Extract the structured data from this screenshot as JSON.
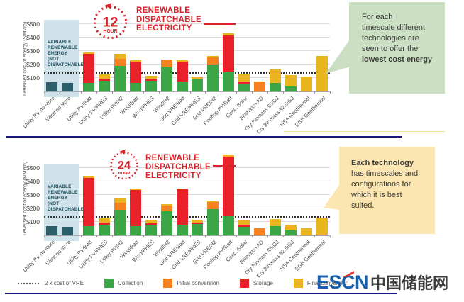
{
  "colors": {
    "vre_bar": "#2b5d6b",
    "collection": "#3aa648",
    "initial_conversion": "#f58220",
    "storage": "#e8212a",
    "final_conversion": "#e9b420",
    "panel_bg": "#cfe1e9",
    "panel_text": "#1d4f5f",
    "accent_red": "#d8232a",
    "navy_line": "#18187e",
    "pale_yellow_line": "#f3dc9b",
    "green_box_bg": "#cbdfc2",
    "yellow_box_bg": "#fbe6b2",
    "logo_blue": "#1961ad",
    "logo_red": "#e23b2e"
  },
  "chart_data": [
    {
      "type": "bar",
      "stacked": true,
      "badge": {
        "number": "12",
        "unit": "HOUR"
      },
      "title": "RENEWABLE DISPATCHABLE ELECTRICITY",
      "title_lines": [
        "RENEWABLE",
        "DISPATCHABLE",
        "ELECTRICITY"
      ],
      "ylabel": "Levelised cost of energy ($/MWh)",
      "ylim": [
        0,
        550
      ],
      "grid": true,
      "y_tick_labels": [
        "$100",
        "$200",
        "$300",
        "$400",
        "$500"
      ],
      "vre_panel_label_lines": [
        "VARIABLE",
        "RENEWABLE",
        "ENERGY (NOT",
        "DISPATCHABLE)"
      ],
      "reference_line": {
        "label": "2 x cost of VRE",
        "value": 130
      },
      "categories": [
        "Utility PV no store",
        "Wind no store",
        "Utility PV/Batt",
        "Utility PV/PHES",
        "Utility PV/H2",
        "Wind/Batt",
        "Wind/PHES",
        "Wind/H2",
        "Grid VRE/Batt",
        "Grid VRE/PHES",
        "Grid VRE/H2",
        "Rooftop PV/Batt",
        "Conc. Solar",
        "Biomass+AD",
        "Dry Biomass $5/GJ",
        "Dry Biomass $2.5/GJ",
        "HSA Geothermal",
        "EGS Geothermal"
      ],
      "series": [
        {
          "name": "VRE (not dispatchable)",
          "color_key": "vre_bar",
          "values": [
            70,
            65,
            0,
            0,
            0,
            0,
            0,
            0,
            0,
            0,
            0,
            0,
            0,
            0,
            0,
            0,
            0,
            0
          ]
        },
        {
          "name": "Collection",
          "color_key": "collection",
          "values": [
            0,
            0,
            65,
            80,
            190,
            62,
            78,
            180,
            75,
            88,
            200,
            140,
            58,
            0,
            63,
            35,
            0,
            0
          ]
        },
        {
          "name": "Initial conversion",
          "color_key": "initial_conversion",
          "values": [
            0,
            0,
            0,
            0,
            50,
            0,
            0,
            50,
            0,
            0,
            55,
            0,
            0,
            72,
            0,
            0,
            0,
            0
          ]
        },
        {
          "name": "Storage",
          "color_key": "storage",
          "values": [
            0,
            0,
            215,
            12,
            0,
            160,
            12,
            0,
            145,
            0,
            0,
            275,
            14,
            0,
            0,
            0,
            0,
            0
          ]
        },
        {
          "name": "Final conversion",
          "color_key": "final_conversion",
          "values": [
            0,
            0,
            12,
            33,
            38,
            10,
            28,
            6,
            10,
            25,
            5,
            15,
            55,
            0,
            100,
            85,
            110,
            265
          ]
        }
      ]
    },
    {
      "type": "bar",
      "stacked": true,
      "badge": {
        "number": "24",
        "unit": "HOUR"
      },
      "title": "RENEWABLE DISPATCHABLE ELECTRICITY",
      "title_lines": [
        "RENEWABLE",
        "DISPATCHABLE",
        "ELECTRICITY"
      ],
      "ylabel": "Levelised cost of energy ($/MWh)",
      "ylim": [
        0,
        610
      ],
      "grid": true,
      "y_tick_labels": [
        "$100",
        "$200",
        "$300",
        "$400",
        "$500"
      ],
      "vre_panel_label_lines": [
        "VARIABLE",
        "RENEWABLE",
        "ENERGY (NOT",
        "DISPATCHABLE)"
      ],
      "reference_line": {
        "label": "2 x cost of VRE",
        "value": 130
      },
      "categories": [
        "Utility PV no store",
        "Wind no store",
        "Utility PV/Batt",
        "Utility PV/PHES",
        "Utility PV/H2",
        "Wind/Batt",
        "Wind/PHES",
        "Wind/H2",
        "Grid VRE/Batt",
        "Grid VRE/PHES",
        "Grid VRE/H2",
        "Rooftop PV/Batt",
        "Conc. Solar",
        "Biomass+AD",
        "Dry Biomass $5/GJ",
        "Dry Biomass $2.5/GJ",
        "HSA Geothermal",
        "EGS Geothermal"
      ],
      "series": [
        {
          "name": "VRE (not dispatchable)",
          "color_key": "vre_bar",
          "values": [
            70,
            65,
            0,
            0,
            0,
            0,
            0,
            0,
            0,
            0,
            0,
            0,
            0,
            0,
            0,
            0,
            0,
            0
          ]
        },
        {
          "name": "Collection",
          "color_key": "collection",
          "values": [
            0,
            0,
            68,
            78,
            190,
            68,
            75,
            180,
            77,
            85,
            195,
            150,
            63,
            0,
            70,
            36,
            0,
            0
          ]
        },
        {
          "name": "Initial conversion",
          "color_key": "initial_conversion",
          "values": [
            0,
            0,
            0,
            0,
            50,
            0,
            0,
            40,
            0,
            0,
            50,
            0,
            0,
            55,
            0,
            0,
            0,
            0
          ]
        },
        {
          "name": "Storage",
          "color_key": "storage",
          "values": [
            0,
            0,
            357,
            18,
            0,
            267,
            12,
            0,
            263,
            10,
            0,
            435,
            17,
            0,
            0,
            0,
            0,
            0
          ]
        },
        {
          "name": "Final conversion",
          "color_key": "final_conversion",
          "values": [
            0,
            0,
            15,
            30,
            32,
            10,
            28,
            10,
            10,
            20,
            10,
            15,
            35,
            0,
            52,
            44,
            55,
            130
          ]
        }
      ]
    }
  ],
  "callouts": {
    "green": {
      "lines": [
        {
          "text": "For each"
        },
        {
          "text": "timescale different"
        },
        {
          "text": "technologies are"
        },
        {
          "text": "seen to offer the"
        },
        {
          "text": "lowest cost energy",
          "bold": true
        }
      ]
    },
    "yellow": {
      "lines": [
        {
          "text": "Each technology",
          "bold": true
        },
        {
          "text": "has timescales and"
        },
        {
          "text": "configurations for"
        },
        {
          "text": "which it is best"
        },
        {
          "text": "suited."
        }
      ]
    }
  },
  "legend": {
    "reference": {
      "label": "2 x cost of VRE"
    },
    "items": [
      {
        "label": "Collection",
        "color_key": "collection"
      },
      {
        "label": "Initial conversion",
        "color_key": "initial_conversion"
      },
      {
        "label": "Storage",
        "color_key": "storage"
      },
      {
        "label": "Final conversion",
        "color_key": "final_conversion"
      }
    ]
  },
  "logo": {
    "latin": "ESCN",
    "chinese": "中国储能网"
  }
}
